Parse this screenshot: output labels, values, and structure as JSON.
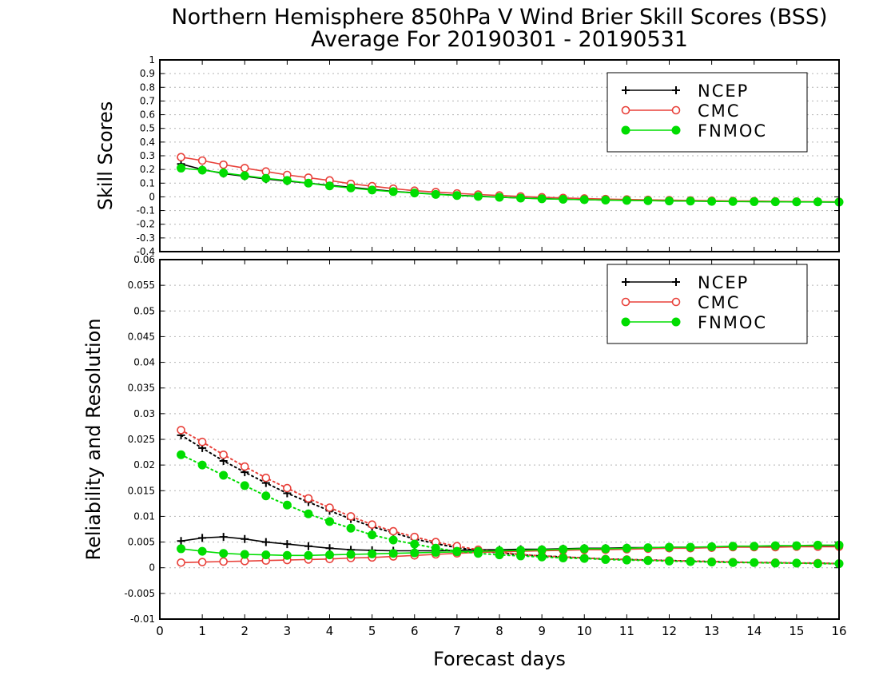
{
  "page": {
    "title_line1": "Northern Hemisphere 850hPa V Wind Brier Skill Scores (BSS)",
    "title_line2": "Average For 20190301 - 20190531"
  },
  "chart_data": [
    {
      "type": "line",
      "ylabel": "Skill Scores",
      "xlabel": "",
      "xlim": [
        0,
        16
      ],
      "ylim": [
        -0.4,
        1
      ],
      "x_ticks": [
        0,
        1,
        2,
        3,
        4,
        5,
        6,
        7,
        8,
        9,
        10,
        11,
        12,
        13,
        14,
        15,
        16
      ],
      "y_ticks": [
        -0.4,
        -0.3,
        -0.2,
        -0.1,
        0,
        0.1,
        0.2,
        0.3,
        0.4,
        0.5,
        0.6,
        0.7,
        0.8,
        0.9,
        1
      ],
      "y_tick_labels": [
        "-0.4",
        "-0.3",
        "-0.2",
        "-0.1",
        "0",
        "0.1",
        "0.2",
        "0.3",
        "0.4",
        "0.5",
        "0.6",
        "0.7",
        "0.8",
        "0.9",
        "1"
      ],
      "grid": true,
      "legend_position": "top-right",
      "x": [
        0.5,
        1,
        1.5,
        2,
        2.5,
        3,
        3.5,
        4,
        4.5,
        5,
        5.5,
        6,
        6.5,
        7,
        7.5,
        8,
        8.5,
        9,
        9.5,
        10,
        10.5,
        11,
        11.5,
        12,
        12.5,
        13,
        13.5,
        14,
        14.5,
        15,
        15.5,
        16
      ],
      "series": [
        {
          "name": "NCEP",
          "color": "#000000",
          "marker": "plus",
          "style": "solid",
          "values": [
            0.24,
            0.2,
            0.17,
            0.15,
            0.13,
            0.115,
            0.1,
            0.085,
            0.07,
            0.055,
            0.04,
            0.03,
            0.02,
            0.012,
            0.005,
            -0.002,
            -0.008,
            -0.013,
            -0.017,
            -0.02,
            -0.023,
            -0.025,
            -0.027,
            -0.029,
            -0.031,
            -0.032,
            -0.033,
            -0.034,
            -0.035,
            -0.036,
            -0.037,
            -0.038
          ]
        },
        {
          "name": "CMC",
          "color": "#e8413a",
          "marker": "open-circle",
          "style": "solid",
          "values": [
            0.29,
            0.265,
            0.235,
            0.21,
            0.185,
            0.16,
            0.14,
            0.12,
            0.095,
            0.078,
            0.06,
            0.045,
            0.035,
            0.025,
            0.017,
            0.01,
            0.003,
            -0.003,
            -0.008,
            -0.012,
            -0.016,
            -0.019,
            -0.022,
            -0.024,
            -0.026,
            -0.028,
            -0.03,
            -0.031,
            -0.033,
            -0.034,
            -0.035,
            -0.036
          ]
        },
        {
          "name": "FNMOC",
          "color": "#00dd00",
          "marker": "filled-circle",
          "style": "solid",
          "values": [
            0.21,
            0.195,
            0.175,
            0.155,
            0.135,
            0.12,
            0.1,
            0.08,
            0.065,
            0.05,
            0.038,
            0.028,
            0.018,
            0.01,
            0.003,
            -0.003,
            -0.009,
            -0.014,
            -0.018,
            -0.021,
            -0.024,
            -0.026,
            -0.028,
            -0.03,
            -0.031,
            -0.033,
            -0.034,
            -0.035,
            -0.036,
            -0.037,
            -0.037,
            -0.038
          ]
        }
      ]
    },
    {
      "type": "line",
      "ylabel": "Reliability and Resolution",
      "xlabel": "Forecast days",
      "xlim": [
        0,
        16
      ],
      "ylim": [
        -0.01,
        0.06
      ],
      "x_ticks": [
        0,
        1,
        2,
        3,
        4,
        5,
        6,
        7,
        8,
        9,
        10,
        11,
        12,
        13,
        14,
        15,
        16
      ],
      "x_tick_labels": [
        "0",
        "1",
        "2",
        "3",
        "4",
        "5",
        "6",
        "7",
        "8",
        "9",
        "10",
        "11",
        "12",
        "13",
        "14",
        "15",
        "16"
      ],
      "y_ticks": [
        -0.01,
        -0.005,
        0,
        0.005,
        0.01,
        0.015,
        0.02,
        0.025,
        0.03,
        0.035,
        0.04,
        0.045,
        0.05,
        0.055,
        0.06
      ],
      "y_tick_labels": [
        "-0.01",
        "-0.005",
        "0",
        "0.005",
        "0.01",
        "0.015",
        "0.02",
        "0.025",
        "0.03",
        "0.035",
        "0.04",
        "0.045",
        "0.05",
        "0.055",
        "0.06"
      ],
      "grid": true,
      "legend_position": "top-right",
      "x": [
        0.5,
        1,
        1.5,
        2,
        2.5,
        3,
        3.5,
        4,
        4.5,
        5,
        5.5,
        6,
        6.5,
        7,
        7.5,
        8,
        8.5,
        9,
        9.5,
        10,
        10.5,
        11,
        11.5,
        12,
        12.5,
        13,
        13.5,
        14,
        14.5,
        15,
        15.5,
        16
      ],
      "legend_series": [
        {
          "name": "NCEP",
          "color": "#000000",
          "marker": "plus"
        },
        {
          "name": "CMC",
          "color": "#e8413a",
          "marker": "open-circle"
        },
        {
          "name": "FNMOC",
          "color": "#00dd00",
          "marker": "filled-circle"
        }
      ],
      "series": [
        {
          "name": "NCEP reliability",
          "color": "#000000",
          "marker": "plus",
          "style": "solid",
          "values": [
            0.0052,
            0.0058,
            0.006,
            0.0056,
            0.005,
            0.0046,
            0.0042,
            0.0038,
            0.0035,
            0.0034,
            0.0033,
            0.0033,
            0.0033,
            0.0034,
            0.0035,
            0.0035,
            0.0036,
            0.0036,
            0.0037,
            0.0038,
            0.0038,
            0.0039,
            0.0039,
            0.004,
            0.004,
            0.004,
            0.0041,
            0.0041,
            0.0042,
            0.0042,
            0.0042,
            0.0043
          ]
        },
        {
          "name": "NCEP resolution",
          "color": "#000000",
          "marker": "plus",
          "style": "dotted",
          "values": [
            0.0258,
            0.0233,
            0.0208,
            0.0186,
            0.0165,
            0.0145,
            0.0128,
            0.0111,
            0.0095,
            0.008,
            0.0068,
            0.0056,
            0.0047,
            0.0039,
            0.0033,
            0.0029,
            0.0025,
            0.0023,
            0.0021,
            0.0019,
            0.0017,
            0.0016,
            0.0015,
            0.0014,
            0.0013,
            0.0012,
            0.0011,
            0.001,
            0.001,
            0.0009,
            0.0009,
            0.0008
          ]
        },
        {
          "name": "CMC reliability",
          "color": "#e8413a",
          "marker": "open-circle",
          "style": "solid",
          "values": [
            0.001,
            0.0011,
            0.0012,
            0.0013,
            0.0014,
            0.0015,
            0.0016,
            0.0017,
            0.0019,
            0.002,
            0.0022,
            0.0024,
            0.0026,
            0.0028,
            0.003,
            0.0031,
            0.0032,
            0.0033,
            0.0034,
            0.0035,
            0.0035,
            0.0036,
            0.0037,
            0.0038,
            0.0038,
            0.0039,
            0.004,
            0.004,
            0.004,
            0.0041,
            0.0041,
            0.0041
          ]
        },
        {
          "name": "CMC resolution",
          "color": "#e8413a",
          "marker": "open-circle",
          "style": "dotted",
          "values": [
            0.0268,
            0.0245,
            0.022,
            0.0197,
            0.0175,
            0.0155,
            0.0135,
            0.0117,
            0.01,
            0.0084,
            0.0071,
            0.006,
            0.005,
            0.0042,
            0.0035,
            0.003,
            0.0026,
            0.0023,
            0.0021,
            0.0019,
            0.0017,
            0.0016,
            0.0015,
            0.0014,
            0.0013,
            0.0012,
            0.0011,
            0.001,
            0.001,
            0.0009,
            0.0009,
            0.0008
          ]
        },
        {
          "name": "FNMOC reliability",
          "color": "#00dd00",
          "marker": "filled-circle",
          "style": "solid",
          "values": [
            0.0037,
            0.0032,
            0.0028,
            0.0026,
            0.0025,
            0.0024,
            0.0024,
            0.0025,
            0.0026,
            0.0027,
            0.0028,
            0.0029,
            0.003,
            0.0031,
            0.0032,
            0.0033,
            0.0034,
            0.0035,
            0.0036,
            0.0037,
            0.0037,
            0.0038,
            0.0039,
            0.004,
            0.004,
            0.0041,
            0.0042,
            0.0042,
            0.0043,
            0.0043,
            0.0044,
            0.0044
          ]
        },
        {
          "name": "FNMOC resolution",
          "color": "#00dd00",
          "marker": "filled-circle",
          "style": "dotted",
          "values": [
            0.022,
            0.02,
            0.018,
            0.016,
            0.014,
            0.0122,
            0.0105,
            0.009,
            0.0077,
            0.0064,
            0.0054,
            0.0046,
            0.0038,
            0.0032,
            0.0028,
            0.0025,
            0.0023,
            0.0021,
            0.0019,
            0.0018,
            0.0016,
            0.0015,
            0.0014,
            0.0013,
            0.0012,
            0.0011,
            0.001,
            0.001,
            0.0009,
            0.0009,
            0.0008,
            0.0008
          ]
        }
      ]
    }
  ]
}
